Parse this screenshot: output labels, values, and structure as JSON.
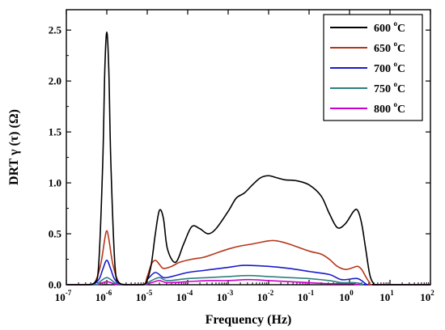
{
  "chart_data": {
    "type": "line",
    "xlabel": "Frequency (Hz)",
    "ylabel": "DRT γ (τ) (Ω)",
    "x_scale": "log",
    "xlim_exponents": [
      -7,
      2
    ],
    "x_tick_labels": [
      {
        "base": "10",
        "exp": "-7"
      },
      {
        "base": "10",
        "exp": "-6"
      },
      {
        "base": "10",
        "exp": "-5"
      },
      {
        "base": "10",
        "exp": "-4"
      },
      {
        "base": "10",
        "exp": "-3"
      },
      {
        "base": "10",
        "exp": "-2"
      },
      {
        "base": "10",
        "exp": "-1"
      },
      {
        "base": "10",
        "exp": "0"
      },
      {
        "base": "10",
        "exp": "1"
      },
      {
        "base": "10",
        "exp": "2"
      }
    ],
    "ylim": [
      0,
      2.7
    ],
    "y_ticks": [
      0.0,
      0.5,
      1.0,
      1.5,
      2.0,
      2.5
    ],
    "y_tick_labels": [
      "0.0",
      "0.5",
      "1.0",
      "1.5",
      "2.0",
      "2.5"
    ],
    "legend_position": "top-right",
    "series": [
      {
        "name": "600",
        "unit_sup": "o",
        "unit": "C",
        "color": "#000000",
        "points": [
          [
            -7,
            0
          ],
          [
            -6.5,
            0
          ],
          [
            -6.3,
            0.02
          ],
          [
            -6.2,
            0.2
          ],
          [
            -6.1,
            1.2
          ],
          [
            -6.05,
            2.1
          ],
          [
            -6.0,
            2.48
          ],
          [
            -5.95,
            2.1
          ],
          [
            -5.9,
            1.2
          ],
          [
            -5.8,
            0.2
          ],
          [
            -5.7,
            0.02
          ],
          [
            -5.5,
            0
          ],
          [
            -5.1,
            0
          ],
          [
            -5.0,
            0.05
          ],
          [
            -4.9,
            0.2
          ],
          [
            -4.8,
            0.5
          ],
          [
            -4.7,
            0.73
          ],
          [
            -4.6,
            0.65
          ],
          [
            -4.5,
            0.35
          ],
          [
            -4.3,
            0.22
          ],
          [
            -4.1,
            0.4
          ],
          [
            -3.9,
            0.57
          ],
          [
            -3.7,
            0.55
          ],
          [
            -3.5,
            0.5
          ],
          [
            -3.3,
            0.55
          ],
          [
            -3.0,
            0.72
          ],
          [
            -2.8,
            0.85
          ],
          [
            -2.6,
            0.9
          ],
          [
            -2.4,
            0.98
          ],
          [
            -2.2,
            1.05
          ],
          [
            -2.0,
            1.07
          ],
          [
            -1.8,
            1.05
          ],
          [
            -1.6,
            1.03
          ],
          [
            -1.3,
            1.02
          ],
          [
            -1.0,
            0.98
          ],
          [
            -0.7,
            0.87
          ],
          [
            -0.5,
            0.7
          ],
          [
            -0.3,
            0.56
          ],
          [
            -0.1,
            0.6
          ],
          [
            0.1,
            0.72
          ],
          [
            0.2,
            0.73
          ],
          [
            0.3,
            0.6
          ],
          [
            0.4,
            0.35
          ],
          [
            0.5,
            0.1
          ],
          [
            0.6,
            0.01
          ],
          [
            0.7,
            0
          ],
          [
            2,
            0
          ]
        ]
      },
      {
        "name": "650",
        "unit_sup": "o",
        "unit": "C",
        "color": "#b5361a",
        "points": [
          [
            -7,
            0
          ],
          [
            -6.5,
            0
          ],
          [
            -6.3,
            0.02
          ],
          [
            -6.15,
            0.2
          ],
          [
            -6.05,
            0.45
          ],
          [
            -6.0,
            0.53
          ],
          [
            -5.95,
            0.45
          ],
          [
            -5.85,
            0.2
          ],
          [
            -5.7,
            0.02
          ],
          [
            -5.5,
            0
          ],
          [
            -5.1,
            0
          ],
          [
            -5.0,
            0.08
          ],
          [
            -4.9,
            0.2
          ],
          [
            -4.8,
            0.24
          ],
          [
            -4.7,
            0.2
          ],
          [
            -4.6,
            0.16
          ],
          [
            -4.4,
            0.18
          ],
          [
            -4.2,
            0.22
          ],
          [
            -3.9,
            0.25
          ],
          [
            -3.6,
            0.27
          ],
          [
            -3.3,
            0.31
          ],
          [
            -3.0,
            0.35
          ],
          [
            -2.7,
            0.38
          ],
          [
            -2.4,
            0.4
          ],
          [
            -2.0,
            0.43
          ],
          [
            -1.8,
            0.43
          ],
          [
            -1.5,
            0.4
          ],
          [
            -1.0,
            0.33
          ],
          [
            -0.7,
            0.3
          ],
          [
            -0.5,
            0.25
          ],
          [
            -0.3,
            0.18
          ],
          [
            -0.1,
            0.15
          ],
          [
            0.1,
            0.17
          ],
          [
            0.2,
            0.18
          ],
          [
            0.3,
            0.15
          ],
          [
            0.4,
            0.08
          ],
          [
            0.5,
            0.02
          ],
          [
            0.6,
            0
          ],
          [
            2,
            0
          ]
        ]
      },
      {
        "name": "700",
        "unit_sup": "o",
        "unit": "C",
        "color": "#1a1acc",
        "points": [
          [
            -7,
            0
          ],
          [
            -6.4,
            0
          ],
          [
            -6.2,
            0.05
          ],
          [
            -6.1,
            0.15
          ],
          [
            -6.0,
            0.24
          ],
          [
            -5.9,
            0.15
          ],
          [
            -5.8,
            0.05
          ],
          [
            -5.6,
            0
          ],
          [
            -5.1,
            0
          ],
          [
            -5.0,
            0.05
          ],
          [
            -4.8,
            0.12
          ],
          [
            -4.6,
            0.07
          ],
          [
            -4.4,
            0.08
          ],
          [
            -4.0,
            0.12
          ],
          [
            -3.6,
            0.14
          ],
          [
            -3.0,
            0.17
          ],
          [
            -2.6,
            0.19
          ],
          [
            -2.0,
            0.18
          ],
          [
            -1.5,
            0.16
          ],
          [
            -1.0,
            0.13
          ],
          [
            -0.5,
            0.1
          ],
          [
            -0.2,
            0.05
          ],
          [
            0.1,
            0.06
          ],
          [
            0.2,
            0.06
          ],
          [
            0.3,
            0.04
          ],
          [
            0.4,
            0.01
          ],
          [
            0.5,
            0
          ],
          [
            2,
            0
          ]
        ]
      },
      {
        "name": "750",
        "unit_sup": "o",
        "unit": "C",
        "color": "#2e7f7f",
        "points": [
          [
            -7,
            0
          ],
          [
            -6.3,
            0
          ],
          [
            -6.2,
            0.02
          ],
          [
            -6.1,
            0.05
          ],
          [
            -6.0,
            0.07
          ],
          [
            -5.9,
            0.05
          ],
          [
            -5.8,
            0.02
          ],
          [
            -5.6,
            0
          ],
          [
            -5.1,
            0
          ],
          [
            -4.9,
            0.04
          ],
          [
            -4.7,
            0.07
          ],
          [
            -4.5,
            0.04
          ],
          [
            -4.0,
            0.06
          ],
          [
            -3.5,
            0.07
          ],
          [
            -3.0,
            0.08
          ],
          [
            -2.5,
            0.09
          ],
          [
            -2.0,
            0.08
          ],
          [
            -1.5,
            0.07
          ],
          [
            -1.0,
            0.06
          ],
          [
            -0.5,
            0.04
          ],
          [
            -0.2,
            0.02
          ],
          [
            0.1,
            0.02
          ],
          [
            0.3,
            0.01
          ],
          [
            0.4,
            0
          ],
          [
            2,
            0
          ]
        ]
      },
      {
        "name": "800",
        "unit_sup": "o",
        "unit": "C",
        "color": "#cc00cc",
        "points": [
          [
            -7,
            0
          ],
          [
            -6.3,
            0
          ],
          [
            -6.1,
            0.02
          ],
          [
            -6.0,
            0.03
          ],
          [
            -5.9,
            0.02
          ],
          [
            -5.7,
            0
          ],
          [
            -5.1,
            0
          ],
          [
            -4.9,
            0.02
          ],
          [
            -4.7,
            0.04
          ],
          [
            -4.5,
            0.02
          ],
          [
            -4.0,
            0.03
          ],
          [
            -3.5,
            0.04
          ],
          [
            -3.0,
            0.04
          ],
          [
            -2.5,
            0.05
          ],
          [
            -2.0,
            0.04
          ],
          [
            -1.5,
            0.03
          ],
          [
            -1.0,
            0.02
          ],
          [
            -0.5,
            0.01
          ],
          [
            0.1,
            0.01
          ],
          [
            0.3,
            0
          ],
          [
            2,
            0
          ]
        ]
      }
    ]
  }
}
